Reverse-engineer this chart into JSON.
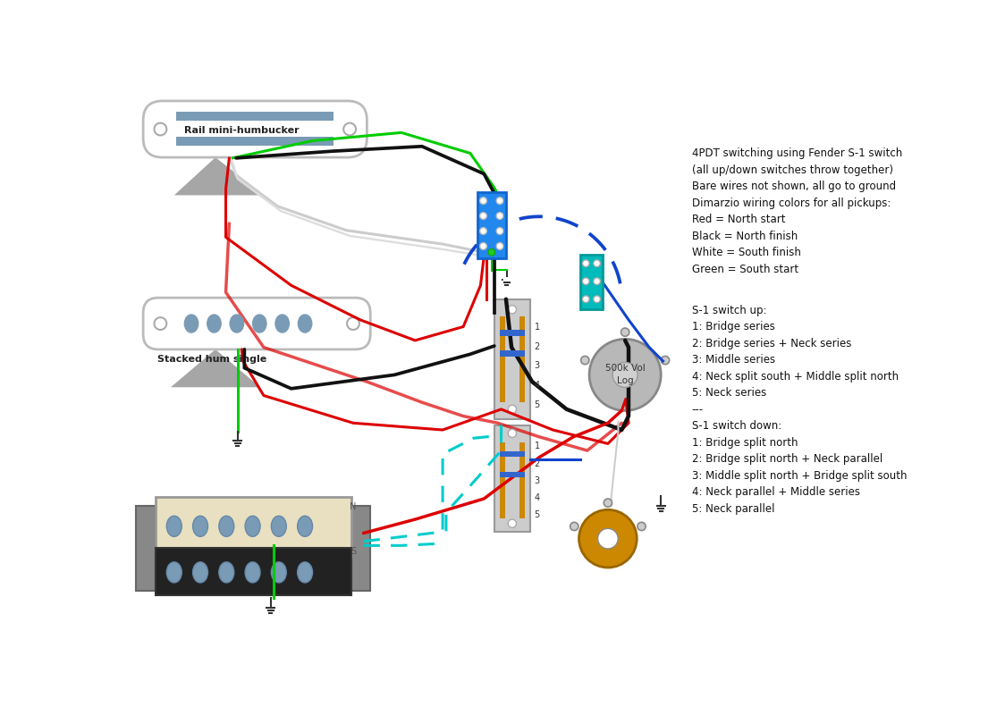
{
  "bg_color": "#ffffff",
  "info_text_1": "4PDT switching using Fender S-1 switch\n(all up/down switches throw together)\nBare wires not shown, all go to ground\nDimarzio wiring colors for all pickups:\nRed = North start\nBlack = North finish\nWhite = South finish\nGreen = South start",
  "info_text_2": "S-1 switch up:\n1: Bridge series\n2: Bridge series + Neck series\n3: Middle series\n4: Neck split south + Middle split north\n5: Neck series\n---\nS-1 switch down:\n1: Bridge split north\n2: Bridge split north + Neck parallel\n3: Middle split north + Bridge split south\n4: Neck parallel + Middle series\n5: Neck parallel",
  "pickup_neck_label": "Rail mini-humbucker",
  "pickup_mid_label": "Stacked hum single",
  "vol_label": "500k Vol\nLog",
  "wire_red": "#dd0000",
  "wire_black": "#111111",
  "wire_green": "#00cc00",
  "wire_white": "#cccccc",
  "wire_blue": "#1144cc",
  "wire_teal": "#00cccc",
  "switch_blue": "#2288ee",
  "switch_teal": "#00bbbb",
  "pot_gray": "#aaaaaa",
  "tone_gold": "#cc8800",
  "rail_col": "#7a9bb5",
  "pole_col": "#7a9bb5",
  "sw_body": "#cccccc",
  "sw_orange": "#dd8800",
  "sw_blue": "#3366cc"
}
